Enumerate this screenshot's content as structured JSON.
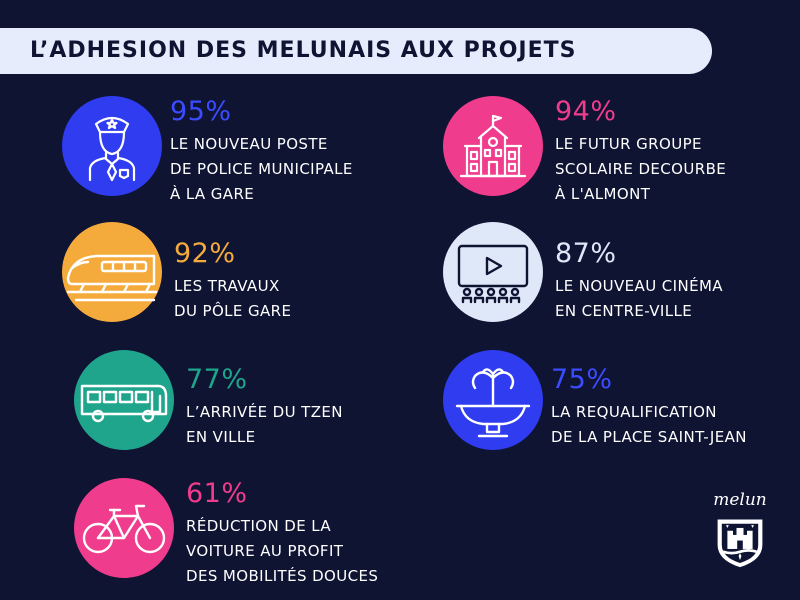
{
  "title": "L’ADHESION DES MELUNAIS AUX PROJETS",
  "items": [
    {
      "pct": "95%",
      "lines": [
        "LE NOUVEAU POSTE",
        "DE POLICE MUNICIPALE",
        "À LA GARE"
      ],
      "color": "#2f3cf0",
      "icon": "police-officer-icon"
    },
    {
      "pct": "94%",
      "lines": [
        "LE FUTUR GROUPE",
        "SCOLAIRE DECOURBE",
        "À L'ALMONT"
      ],
      "color": "#f03c8c",
      "icon": "school-building-icon"
    },
    {
      "pct": "92%",
      "lines": [
        "LES TRAVAUX",
        "DU PÔLE GARE"
      ],
      "color": "#f5aa3c",
      "icon": "train-icon"
    },
    {
      "pct": "87%",
      "lines": [
        "LE NOUVEAU CINÉMA",
        "EN CENTRE-VILLE"
      ],
      "color": "#dfe8f8",
      "icon": "cinema-icon"
    },
    {
      "pct": "77%",
      "lines": [
        "L’ARRIVÉE DU TZEN",
        "EN VILLE"
      ],
      "color": "#1fa58c",
      "icon": "bus-icon"
    },
    {
      "pct": "75%",
      "lines": [
        "LA REQUALIFICATION",
        "DE LA PLACE SAINT-JEAN"
      ],
      "color": "#2f3cf0",
      "icon": "fountain-icon"
    },
    {
      "pct": "61%",
      "lines": [
        "RÉDUCTION DE LA",
        "VOITURE AU PROFIT",
        "DES MOBILITÉS DOUCES"
      ],
      "color": "#f03c8c",
      "icon": "bicycle-icon"
    }
  ],
  "logo": {
    "text": "melun",
    "icon": "melun-coat-of-arms-icon"
  }
}
